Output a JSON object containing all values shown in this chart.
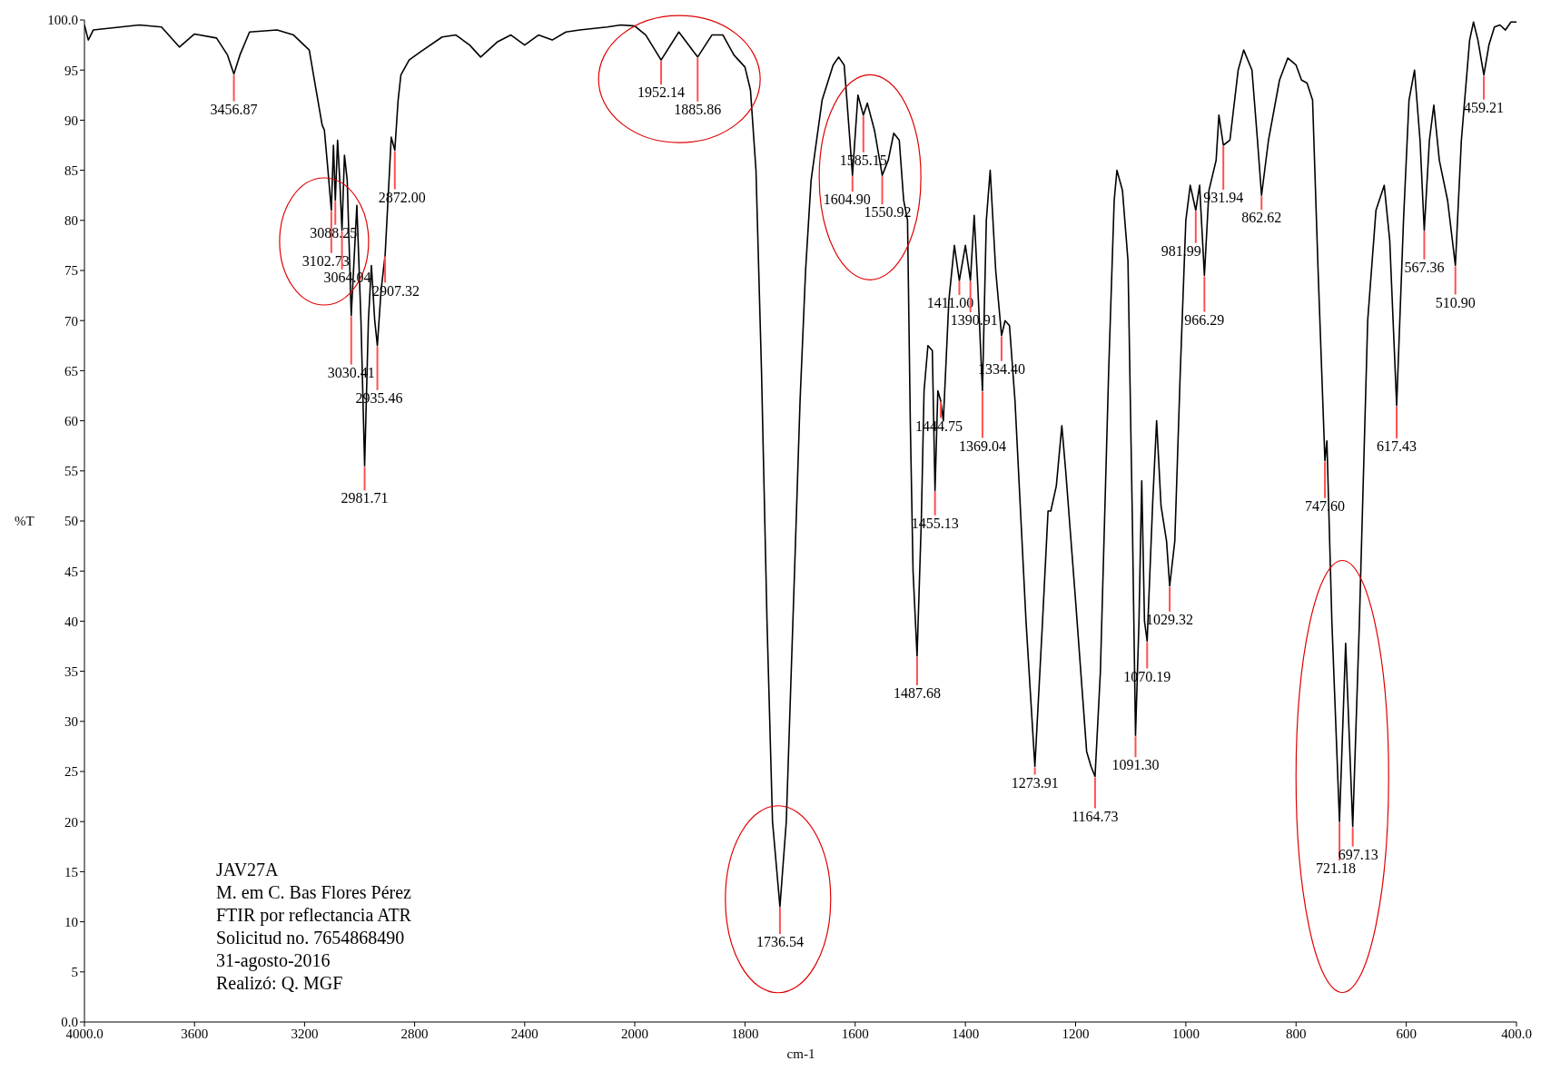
{
  "chart_data": [
    {
      "type": "line",
      "ylabel": "%T",
      "x": [
        4000,
        3986,
        3968,
        3800,
        3720,
        3655,
        3600,
        3520,
        3480,
        3456.87,
        3435,
        3400,
        3300,
        3240,
        3183,
        3158,
        3136,
        3128,
        3115,
        3102.73,
        3095,
        3088.25,
        3080,
        3072,
        3064.04,
        3055,
        3045,
        3030.41,
        3010,
        2995,
        2981.71,
        2968,
        2957,
        2945,
        2935.46,
        2922,
        2907.32,
        2895,
        2885,
        2872,
        2860,
        2850,
        2820,
        2780,
        2700,
        2650,
        2600,
        2560,
        2500,
        2450,
        2400,
        2350,
        2300,
        2250,
        2200,
        2100,
        2050,
        2000
      ],
      "series": [
        {
          "color": "#000000",
          "values": [
            99.5,
            98,
            99,
            99.5,
            99.3,
            97.3,
            98.6,
            98.2,
            96.5,
            94.6,
            96.5,
            98.8,
            99,
            98.5,
            97,
            93,
            89.5,
            89,
            85,
            81,
            87.5,
            82,
            88,
            84,
            79,
            86.5,
            84,
            70.5,
            81.5,
            70,
            55.5,
            70,
            75.5,
            70,
            67.5,
            73,
            76.5,
            83,
            88.3,
            87,
            92,
            94.5,
            96,
            96.8,
            98.3,
            98.5,
            97.5,
            96.3,
            97.8,
            98.5,
            97.5,
            98.5,
            98,
            98.8,
            99,
            99.3,
            99.5,
            99.4
          ]
        }
      ],
      "xlim": [
        4000,
        2000
      ],
      "xticks": [
        {
          "value": 4000,
          "label": "4000.0"
        },
        3600,
        3200,
        2800,
        2400
      ],
      "ylim": [
        0,
        100
      ],
      "yticks": [
        {
          "value": 0,
          "label": "0.0"
        },
        5,
        10,
        15,
        20,
        25,
        30,
        35,
        40,
        45,
        50,
        55,
        60,
        65,
        70,
        75,
        80,
        85,
        90,
        95,
        {
          "value": 100,
          "label": "100.0"
        }
      ],
      "annotations": [
        {
          "text": "3456.87",
          "x": 3456.87,
          "y": 94.6
        },
        {
          "text": "3102.73",
          "x": 3102.73,
          "y": 81
        },
        {
          "text": "3088.25",
          "x": 3088.25,
          "y": 82
        },
        {
          "text": "3064.04",
          "x": 3064.04,
          "y": 79
        },
        {
          "text": "3030.41",
          "x": 3030.41,
          "y": 70.5
        },
        {
          "text": "2981.71",
          "x": 2981.71,
          "y": 55.5
        },
        {
          "text": "2935.46",
          "x": 2935.46,
          "y": 67.5
        },
        {
          "text": "2907.32",
          "x": 2907.32,
          "y": 76.5
        },
        {
          "text": "2872.00",
          "x": 2872,
          "y": 87
        },
        "JAV27A",
        "M. em C. Bas Flores Pérez",
        "FTIR por reflectancia ATR",
        "Solicitud no. 7654868490",
        "31-agosto-2016",
        "Realizó: Q. MGF"
      ]
    },
    {
      "type": "line",
      "xlabel": "cm-1",
      "tick_labels": "x",
      "x": [
        2000,
        1980,
        1952.14,
        1920,
        1885.86,
        1860,
        1840,
        1820,
        1800,
        1790,
        1780,
        1770,
        1760,
        1750,
        1736.54,
        1725,
        1710,
        1700,
        1690,
        1680,
        1660,
        1640,
        1630,
        1620,
        1615,
        1604.9,
        1595,
        1585.15,
        1578,
        1565,
        1550.92,
        1540,
        1530,
        1520,
        1512,
        1505,
        1500,
        1495,
        1487.68,
        1480,
        1475,
        1468,
        1460,
        1455.13,
        1450,
        1444.75,
        1440,
        1430,
        1420,
        1411,
        1400,
        1390.91,
        1384,
        1378,
        1369.04,
        1362,
        1355,
        1345,
        1334.4,
        1328,
        1320,
        1310,
        1290,
        1273.91,
        1260,
        1250,
        1245,
        1235,
        1225,
        1218,
        1200,
        1180,
        1172,
        1164.73,
        1155,
        1140,
        1130,
        1125,
        1115,
        1105,
        1097,
        1091.3,
        1085,
        1080,
        1075,
        1070.19,
        1060,
        1053,
        1045,
        1035,
        1029.32,
        1020,
        1010,
        1000,
        992,
        981.99,
        975,
        966.29,
        958,
        945,
        940,
        931.94,
        920,
        905,
        895,
        880,
        870,
        862.62,
        850,
        830,
        815,
        800,
        790,
        780,
        770,
        760,
        747.6,
        744,
        735,
        721.18,
        710,
        697.13,
        685,
        670,
        655,
        640,
        630,
        617.43,
        605,
        595,
        585,
        575,
        567.36,
        558,
        550,
        540,
        525,
        510.9,
        500,
        485,
        478,
        470,
        459.21,
        450,
        440,
        430,
        420,
        410,
        400
      ],
      "series": [
        {
          "color": "#000000",
          "values": [
            99.4,
            98.5,
            96,
            98.8,
            96.3,
            98.5,
            98.5,
            96.5,
            95.3,
            93,
            85,
            65,
            40,
            20,
            11.5,
            20,
            45,
            62,
            75,
            84,
            92,
            95.5,
            96.3,
            95.5,
            92,
            84.5,
            92.5,
            90.5,
            91.7,
            89,
            84.5,
            86,
            88.7,
            88,
            82,
            80,
            60,
            45,
            36.5,
            50,
            63,
            67.5,
            67,
            53,
            63,
            62,
            60,
            72,
            77.5,
            74,
            77.5,
            74,
            80.5,
            74,
            63,
            80,
            85,
            75,
            68.5,
            70,
            69.5,
            62,
            40,
            25.5,
            40,
            51,
            51,
            53.5,
            59.5,
            55,
            42,
            27,
            25.5,
            24.5,
            35,
            65,
            82,
            85,
            83,
            76,
            50,
            28.6,
            40,
            54,
            40,
            38,
            52,
            60,
            51.5,
            48,
            43.5,
            48,
            65,
            80,
            83.5,
            81,
            83.5,
            74.5,
            83,
            86,
            90.5,
            87.5,
            88,
            95,
            97,
            95,
            88,
            82.5,
            88,
            94,
            96.2,
            95.5,
            94,
            93.7,
            92,
            75,
            56,
            58,
            40,
            20,
            37.8,
            19.5,
            40,
            70,
            81,
            83.5,
            78,
            61.5,
            80,
            92,
            95,
            88,
            79,
            88,
            91.5,
            86,
            82,
            75.5,
            88,
            98,
            99.8,
            98,
            94.5,
            97.5,
            99.3,
            99.5,
            99,
            99.8,
            99.8
          ]
        }
      ],
      "xlim": [
        2000,
        400
      ],
      "xticks": [
        2000,
        1800,
        1600,
        1400,
        1200,
        1000,
        800,
        600,
        {
          "value": 400,
          "label": "400.0"
        }
      ],
      "ylim": [
        0,
        100
      ],
      "annotations": [
        {
          "text": "1952.14",
          "x": 1952.14,
          "y": 96
        },
        {
          "text": "1885.86",
          "x": 1885.86,
          "y": 96.3
        },
        {
          "text": "1736.54",
          "x": 1736.54,
          "y": 11.5
        },
        {
          "text": "1604.90",
          "x": 1604.9,
          "y": 84.5
        },
        {
          "text": "1585.15",
          "x": 1585.15,
          "y": 90.5
        },
        {
          "text": "1550.92",
          "x": 1550.92,
          "y": 84.5
        },
        {
          "text": "1487.68",
          "x": 1487.68,
          "y": 36.5
        },
        {
          "text": "1455.13",
          "x": 1455.13,
          "y": 53
        },
        {
          "text": "1444.75",
          "x": 1444.75,
          "y": 62
        },
        {
          "text": "1411.00",
          "x": 1411,
          "y": 74
        },
        {
          "text": "1390.91",
          "x": 1390.91,
          "y": 74
        },
        {
          "text": "1369.04",
          "x": 1369.04,
          "y": 63
        },
        {
          "text": "1334.40",
          "x": 1334.4,
          "y": 68.5
        },
        {
          "text": "1273.91",
          "x": 1273.91,
          "y": 25.5
        },
        {
          "text": "1164.73",
          "x": 1164.73,
          "y": 24.5
        },
        {
          "text": "1091.30",
          "x": 1091.3,
          "y": 28.6
        },
        {
          "text": "1070.19",
          "x": 1070.19,
          "y": 38
        },
        {
          "text": "1029.32",
          "x": 1029.32,
          "y": 43.5
        },
        {
          "text": "981.99",
          "x": 981.99,
          "y": 81
        },
        {
          "text": "966.29",
          "x": 966.29,
          "y": 74.5
        },
        {
          "text": "931.94",
          "x": 931.94,
          "y": 87.5
        },
        {
          "text": "862.62",
          "x": 862.62,
          "y": 82.5
        },
        {
          "text": "747.60",
          "x": 747.6,
          "y": 56
        },
        {
          "text": "721.18",
          "x": 721.18,
          "y": 20
        },
        {
          "text": "697.13",
          "x": 697.13,
          "y": 19.5
        },
        {
          "text": "617.43",
          "x": 617.43,
          "y": 61.5
        },
        {
          "text": "567.36",
          "x": 567.36,
          "y": 79
        },
        {
          "text": "510.90",
          "x": 510.9,
          "y": 75.5
        },
        {
          "text": "459.21",
          "x": 459.21,
          "y": 94.5
        }
      ]
    }
  ]
}
